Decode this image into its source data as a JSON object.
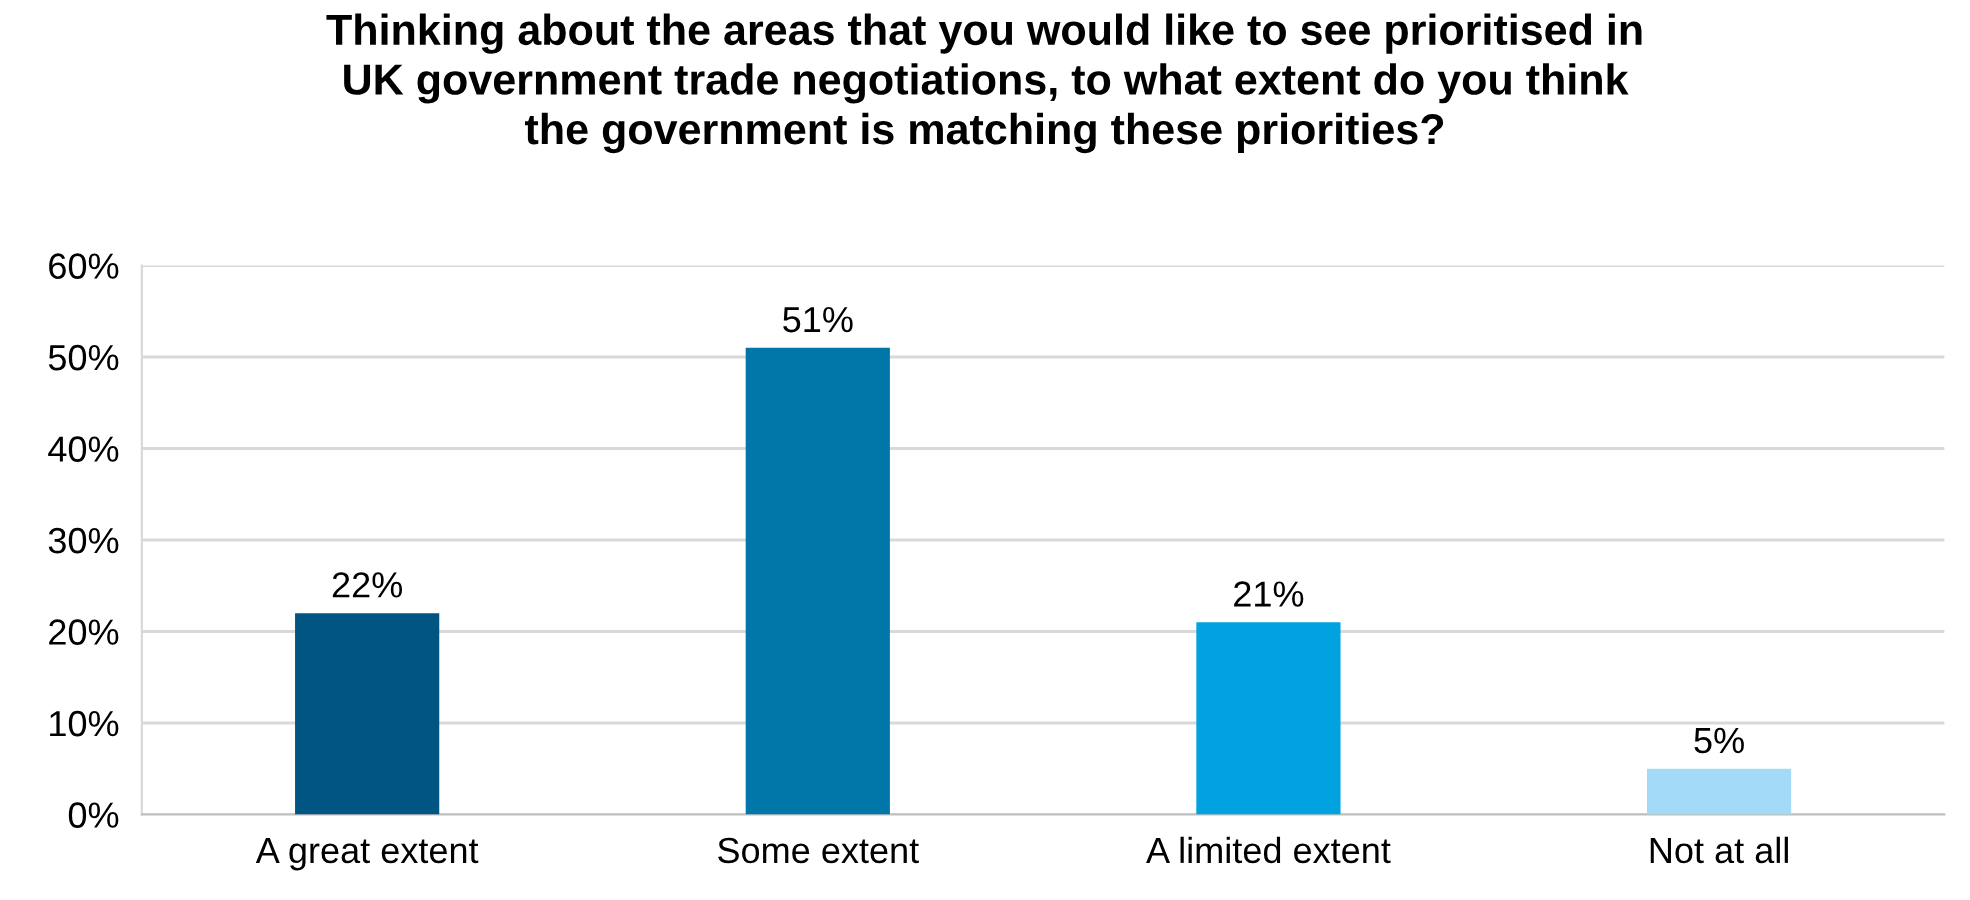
{
  "chart_data": {
    "type": "bar",
    "title": "Thinking about the areas that you would like to see prioritised in\nUK government trade negotiations, to what extent do you think\nthe government is matching these priorities?",
    "categories": [
      "A great extent",
      "Some extent",
      "A limited extent",
      "Not at all"
    ],
    "values": [
      22,
      51,
      21,
      5
    ],
    "value_labels": [
      "22%",
      "51%",
      "21%",
      "5%"
    ],
    "colors": [
      "#005582",
      "#0077a8",
      "#00a3e0",
      "#a3daf7"
    ],
    "ylim": [
      0,
      60
    ],
    "yticks": [
      {
        "value": 0,
        "label": "0%"
      },
      {
        "value": 10,
        "label": "10%"
      },
      {
        "value": 20,
        "label": "20%"
      },
      {
        "value": 30,
        "label": "30%"
      },
      {
        "value": 40,
        "label": "40%"
      },
      {
        "value": 50,
        "label": "50%"
      },
      {
        "value": 60,
        "label": "60%"
      }
    ],
    "grid": "y"
  }
}
